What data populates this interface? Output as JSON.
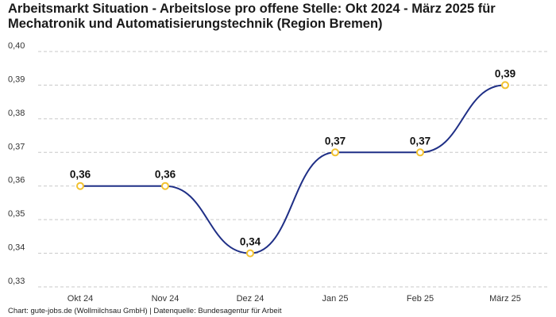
{
  "chart_data": {
    "type": "line",
    "title": "Arbeitsmarkt Situation - Arbeitslose pro offene Stelle: Okt 2024 - März 2025 für Mechatronik und Automatisierungstechnik (Region Bremen)",
    "categories": [
      "Okt 24",
      "Nov 24",
      "Dez 24",
      "Jan 25",
      "Feb 25",
      "März 25"
    ],
    "series": [
      {
        "values": [
          0.36,
          0.36,
          0.34,
          0.37,
          0.37,
          0.39
        ]
      }
    ],
    "data_labels": [
      "0,36",
      "0,36",
      "0,34",
      "0,37",
      "0,37",
      "0,39"
    ],
    "ylim": [
      0.33,
      0.4
    ],
    "yticks": [
      0.33,
      0.34,
      0.35,
      0.36,
      0.37,
      0.38,
      0.39,
      0.4
    ],
    "ytick_labels": [
      "0,33",
      "0,34",
      "0,35",
      "0,36",
      "0,37",
      "0,38",
      "0,39",
      "0,40"
    ],
    "grid": true,
    "xlabel": "",
    "ylabel": "",
    "line_color": "#1f2f86",
    "marker_color": "#f2c230",
    "source": "Chart: gute-jobs.de (Wollmilchsau GmbH) | Datenquelle: Bundesagentur für Arbeit"
  }
}
